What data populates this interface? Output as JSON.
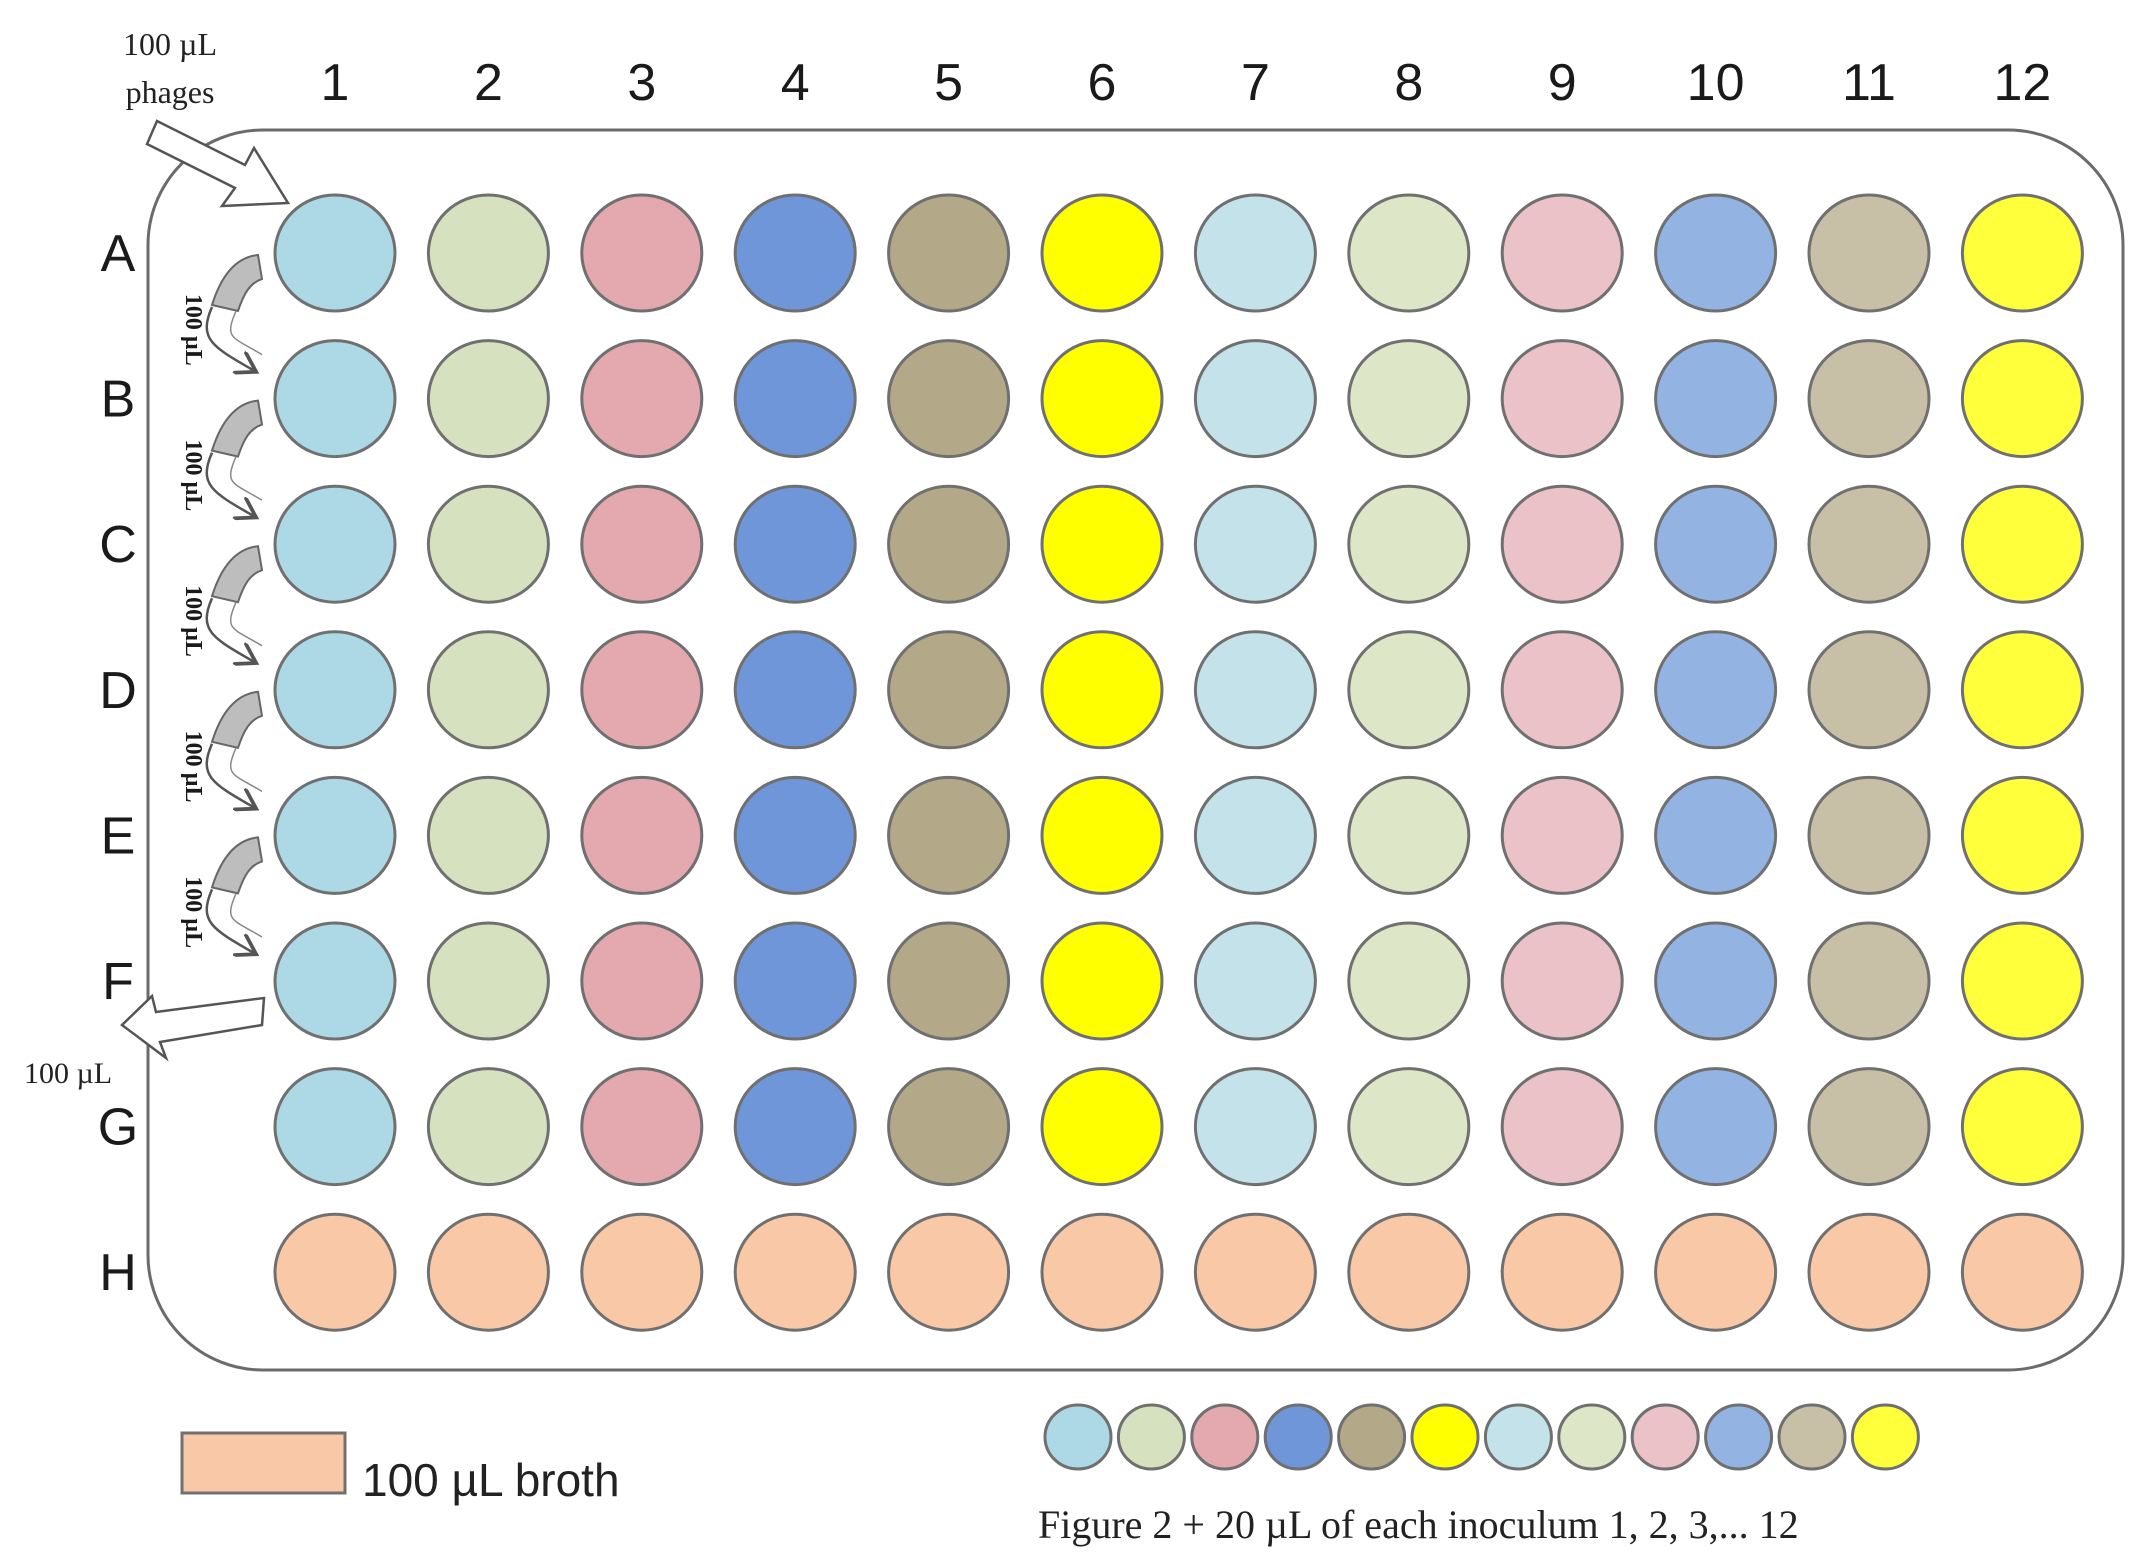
{
  "plate": {
    "column_labels": [
      "1",
      "2",
      "3",
      "4",
      "5",
      "6",
      "7",
      "8",
      "9",
      "10",
      "11",
      "12"
    ],
    "row_labels": [
      "A",
      "B",
      "C",
      "D",
      "E",
      "F",
      "G",
      "H"
    ],
    "column_colors": [
      "#add8e6",
      "#d6e2bf",
      "#e3a9ae",
      "#6f96d8",
      "#b3a989",
      "#ffff00",
      "#c4e2ea",
      "#dde7c7",
      "#ebc2c7",
      "#93b3e3",
      "#c8bfa7",
      "#ffff3c"
    ],
    "broth_color": "#f9c9a7",
    "outline_color": "#707070"
  },
  "annotations": {
    "phages_line1": "100 µL",
    "phages_line2": "phages",
    "transfer_label": "100 µL",
    "discard_label": "100 µL"
  },
  "legend": {
    "broth_label": "100 µL broth",
    "inoculum_caption": "Figure 2 + 20 µL of each inoculum 1, 2, 3,... 12"
  }
}
